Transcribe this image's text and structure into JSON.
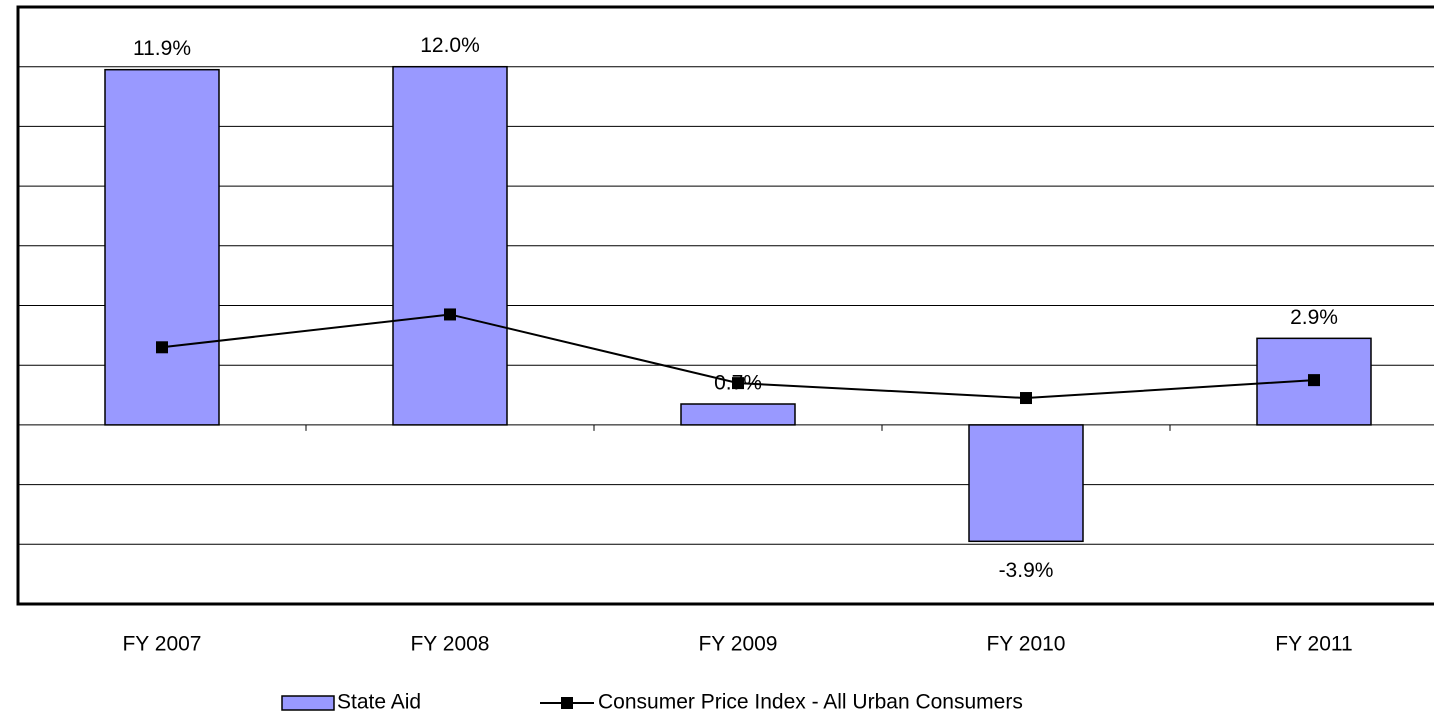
{
  "chart_data": {
    "type": "bar_line",
    "categories": [
      "FY 2007",
      "FY 2008",
      "FY 2009",
      "FY 2010",
      "FY 2011"
    ],
    "series": [
      {
        "name": "State Aid",
        "type": "bar",
        "color": "#9999ff",
        "values": [
          11.9,
          12.0,
          0.7,
          -3.9,
          2.9
        ],
        "value_labels": [
          "11.9%",
          "12.0%",
          "0.7%",
          "-3.9%",
          "2.9%"
        ]
      },
      {
        "name": "Consumer Price Index - All Urban Consumers",
        "type": "line",
        "color": "#000000",
        "values": [
          2.6,
          3.7,
          1.4,
          0.9,
          1.5
        ]
      }
    ],
    "ylim": [
      -6,
      14
    ],
    "yticks": [
      -4,
      -2,
      0,
      2,
      4,
      6,
      8,
      10,
      12
    ],
    "grid": true
  }
}
